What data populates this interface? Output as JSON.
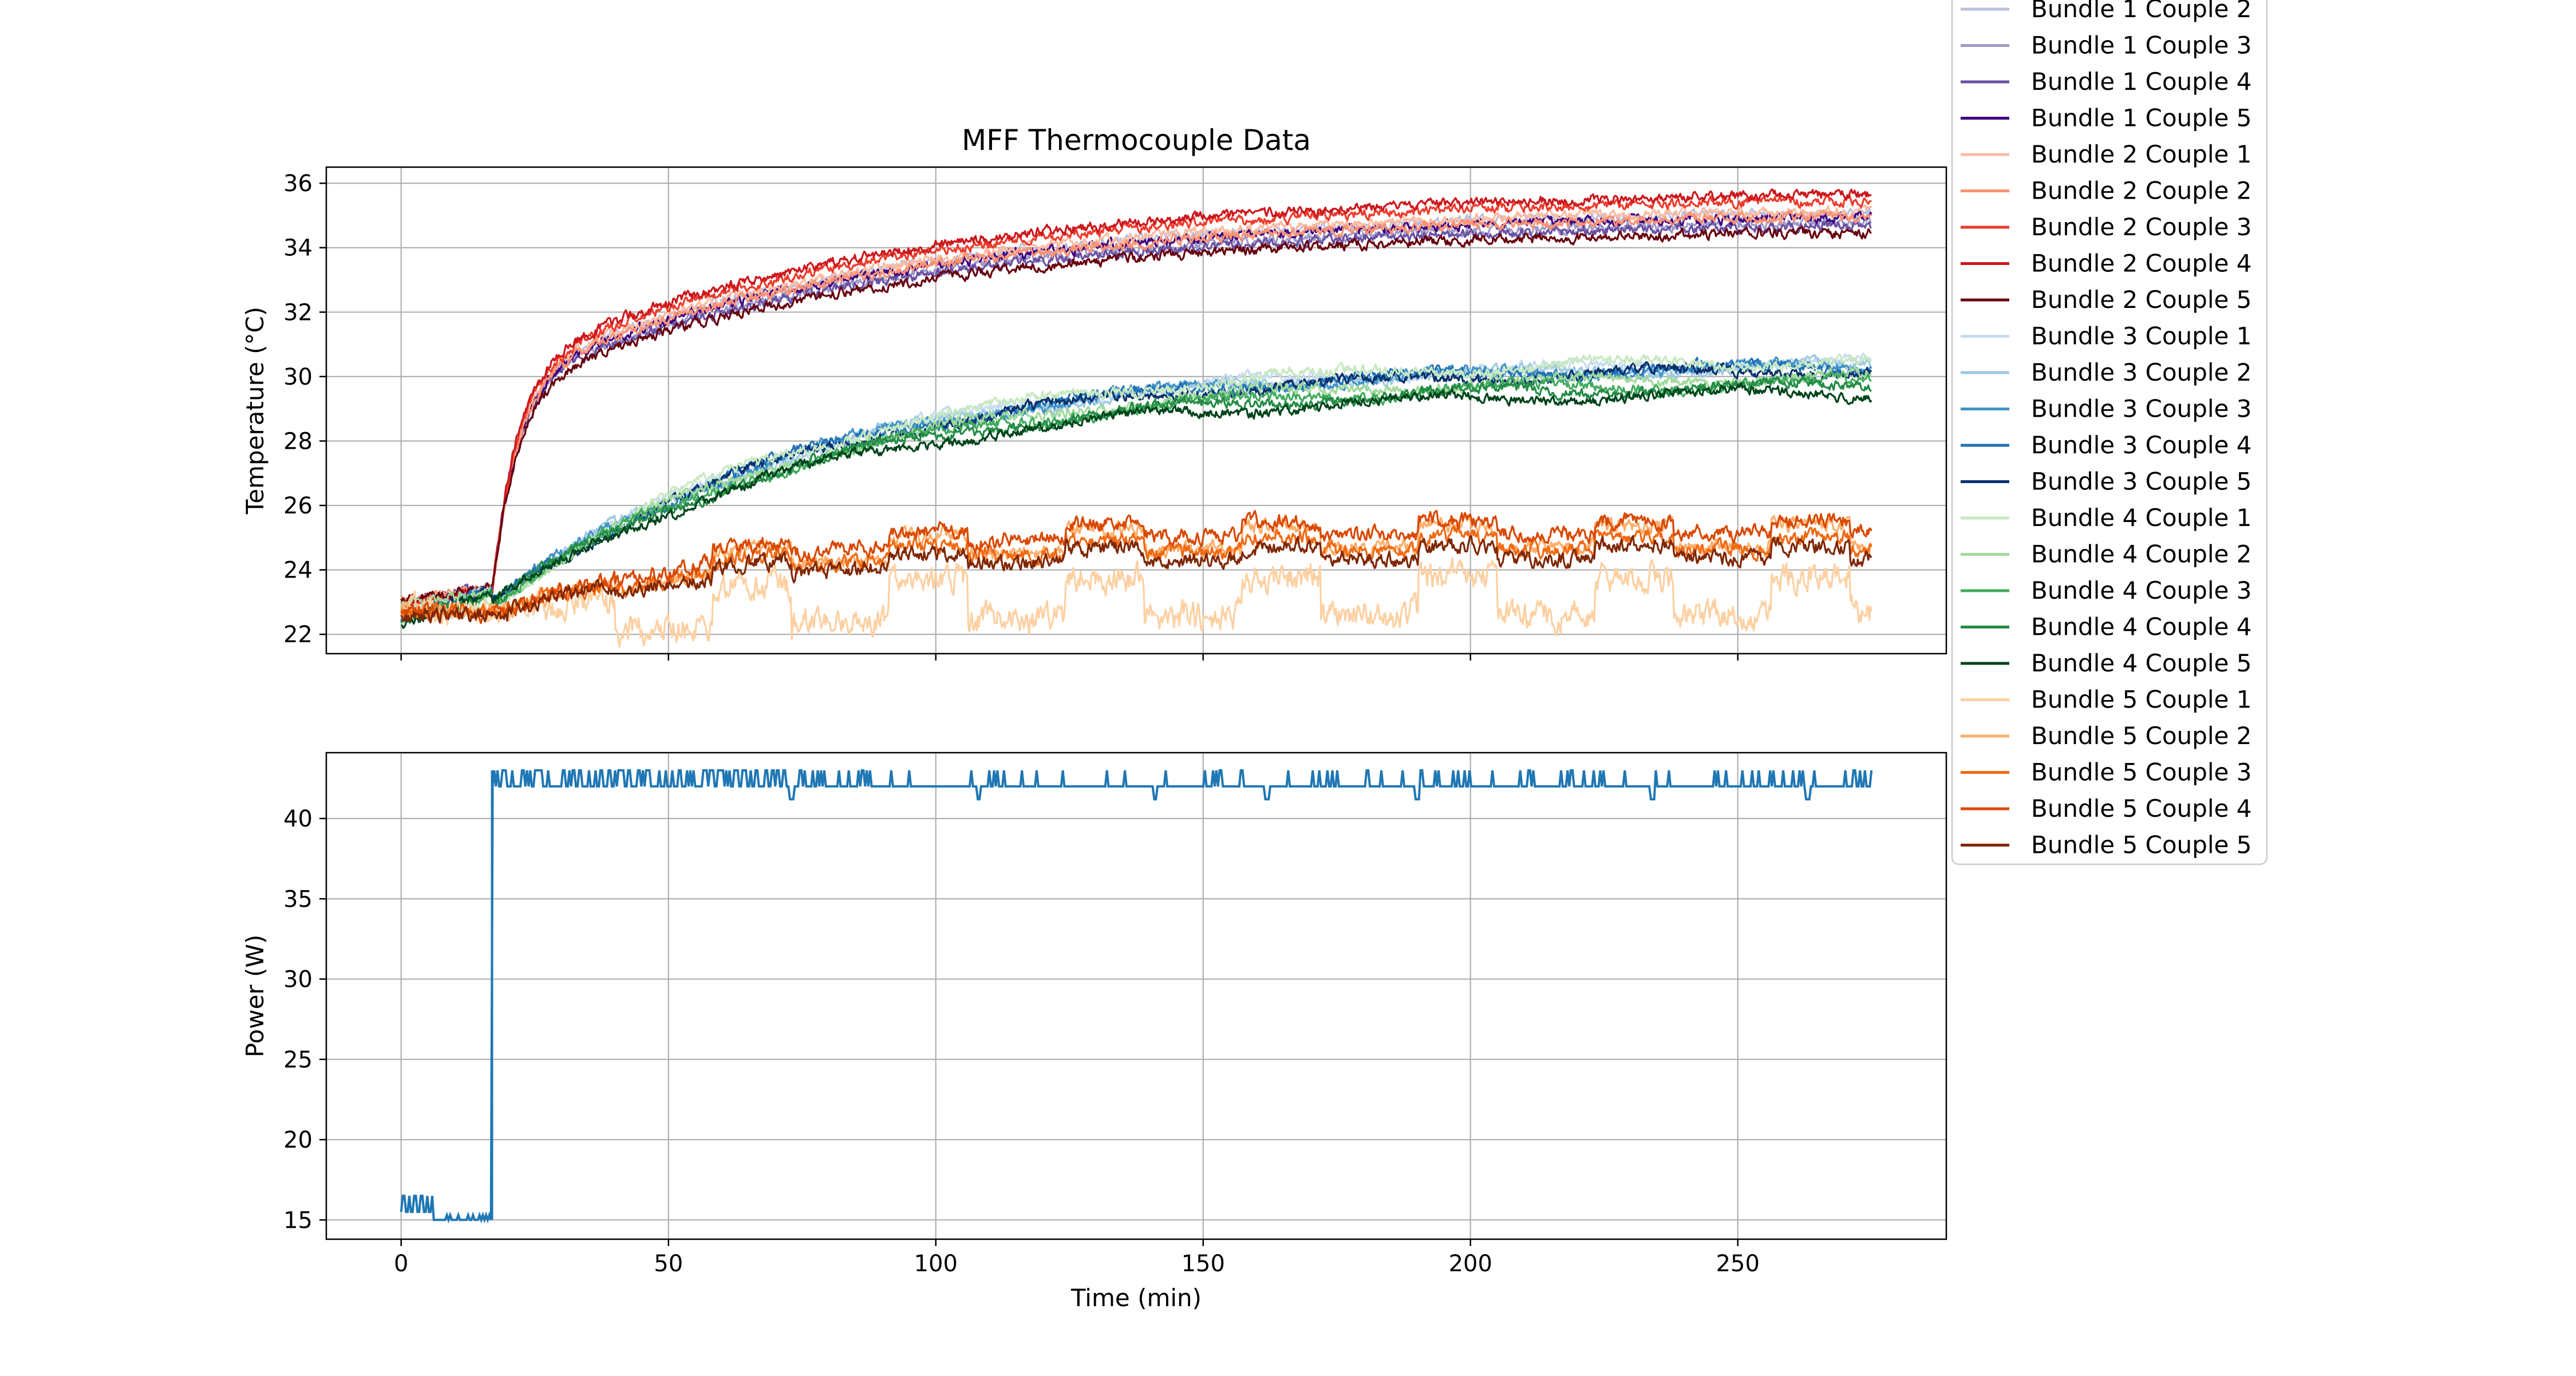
{
  "figure": {
    "title": "MFF Thermocouple Data"
  },
  "chart_data": [
    {
      "type": "line",
      "title": "MFF Thermocouple Data",
      "xlabel": "",
      "ylabel": "Temperature (°C)",
      "xlim": [
        -14,
        289
      ],
      "ylim": [
        21.4,
        36.5
      ],
      "xticks": [
        0,
        50,
        100,
        150,
        200,
        250
      ],
      "xtick_labels_visible": false,
      "yticks": [
        22,
        24,
        26,
        28,
        30,
        32,
        34,
        36
      ],
      "grid": true,
      "legend": "outside upper right",
      "series": [
        {
          "name": "Bundle 1 Couple 2",
          "color": "#bcbddc",
          "group": "g1",
          "final": 35.1
        },
        {
          "name": "Bundle 1 Couple 3",
          "color": "#9e9ac8",
          "group": "g1",
          "final": 34.8
        },
        {
          "name": "Bundle 1 Couple 4",
          "color": "#6a51a3",
          "group": "g1",
          "final": 34.7
        },
        {
          "name": "Bundle 1 Couple 5",
          "color": "#3f007d",
          "group": "g1",
          "final": 35.0
        },
        {
          "name": "Bundle 2 Couple 1",
          "color": "#fcbba1",
          "group": "g1",
          "final": 35.2
        },
        {
          "name": "Bundle 2 Couple 2",
          "color": "#fc9272",
          "group": "g1",
          "final": 35.0
        },
        {
          "name": "Bundle 2 Couple 3",
          "color": "#ef3b2c",
          "group": "g1",
          "final": 35.5
        },
        {
          "name": "Bundle 2 Couple 4",
          "color": "#cb181d",
          "group": "g1",
          "final": 35.7
        },
        {
          "name": "Bundle 2 Couple 5",
          "color": "#67000d",
          "group": "g1",
          "final": 34.5
        },
        {
          "name": "Bundle 3 Couple 1",
          "color": "#c6dbef",
          "group": "g2",
          "final": 30.4
        },
        {
          "name": "Bundle 3 Couple 2",
          "color": "#9ecae1",
          "group": "g2",
          "final": 30.3
        },
        {
          "name": "Bundle 3 Couple 3",
          "color": "#4292c6",
          "group": "g2",
          "final": 30.3
        },
        {
          "name": "Bundle 3 Couple 4",
          "color": "#2171b5",
          "group": "g2",
          "final": 30.3
        },
        {
          "name": "Bundle 3 Couple 5",
          "color": "#08306b",
          "group": "g2",
          "final": 30.2
        },
        {
          "name": "Bundle 4 Couple 1",
          "color": "#c7e9c0",
          "group": "g2",
          "final": 30.5
        },
        {
          "name": "Bundle 4 Couple 2",
          "color": "#a1d99b",
          "group": "g2",
          "final": 30.0
        },
        {
          "name": "Bundle 4 Couple 3",
          "color": "#41ab5d",
          "group": "g2",
          "final": 29.8
        },
        {
          "name": "Bundle 4 Couple 4",
          "color": "#238b45",
          "group": "g2",
          "final": 29.7
        },
        {
          "name": "Bundle 4 Couple 5",
          "color": "#00441b",
          "group": "g2",
          "final": 29.5
        },
        {
          "name": "Bundle 5 Couple 1",
          "color": "#fdd0a2",
          "group": "g3",
          "final": 23.6
        },
        {
          "name": "Bundle 5 Couple 2",
          "color": "#fdae6b",
          "group": "g3",
          "final": 25.0
        },
        {
          "name": "Bundle 5 Couple 3",
          "color": "#f16913",
          "group": "g3",
          "final": 24.8
        },
        {
          "name": "Bundle 5 Couple 4",
          "color": "#d94801",
          "group": "g3",
          "final": 25.3
        },
        {
          "name": "Bundle 5 Couple 5",
          "color": "#7f2704",
          "group": "g3",
          "final": 24.5
        }
      ],
      "groups": {
        "g1": {
          "start": 22.8,
          "step_time": 17,
          "plateau": 35.0
        },
        "g2": {
          "start": 22.6,
          "plateau": 30.2
        },
        "g3": {
          "start": 22.8,
          "plateau": 24.8
        }
      },
      "time_range": [
        0,
        275
      ]
    },
    {
      "type": "line",
      "title": "",
      "xlabel": "Time (min)",
      "ylabel": "Power (W)",
      "xlim": [
        -14,
        289
      ],
      "ylim": [
        13.8,
        44.1
      ],
      "xticks": [
        0,
        50,
        100,
        150,
        200,
        250
      ],
      "yticks": [
        15,
        20,
        25,
        30,
        35,
        40
      ],
      "grid": true,
      "series": [
        {
          "name": "",
          "color": "#1f77b4",
          "x": [
            0,
            6,
            6.5,
            17,
            17.5,
            275
          ],
          "y": [
            16.2,
            16.2,
            15.0,
            15.0,
            42.5,
            42.0
          ],
          "low_phase": {
            "start": 0,
            "end": 17,
            "levels": [
              16.5,
              15.5
            ]
          },
          "high_phase": {
            "start": 17,
            "end": 275,
            "levels": [
              43.0,
              42.0
            ],
            "dips": [
              73,
              108,
              141,
              162,
              190,
              234,
              263
            ]
          }
        }
      ]
    }
  ]
}
